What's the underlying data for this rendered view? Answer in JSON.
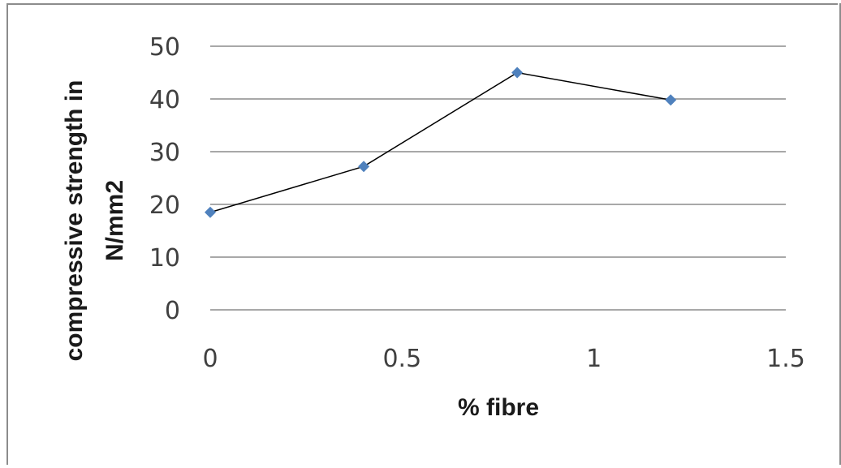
{
  "chart_data": {
    "type": "line",
    "xlabel": "% fibre",
    "ylabel_lines": [
      "compressive strength in",
      "N/mm2"
    ],
    "xlim": [
      0,
      1.5
    ],
    "ylim": [
      0,
      50
    ],
    "x_ticks": [
      0,
      0.5,
      1,
      1.5
    ],
    "x_tick_labels": [
      "0",
      "0.5",
      "1",
      "1.5"
    ],
    "y_ticks": [
      0,
      10,
      20,
      30,
      40,
      50
    ],
    "y_tick_labels": [
      "0",
      "10",
      "20",
      "30",
      "40",
      "50"
    ],
    "grid": "horizontal",
    "legend": "none",
    "series": [
      {
        "x": [
          0,
          0.4,
          0.8,
          1.2
        ],
        "y": [
          18.5,
          27.2,
          45,
          39.8
        ],
        "line_color": "#000000",
        "marker": "diamond",
        "marker_color": "#4f81bd"
      }
    ]
  }
}
